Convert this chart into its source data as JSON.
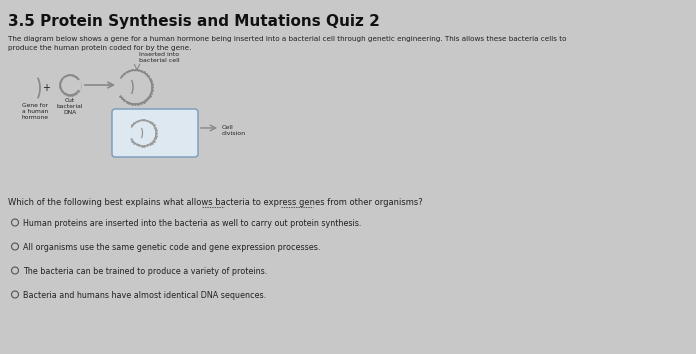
{
  "title": "3.5 Protein Synthesis and Mutations Quiz 2",
  "description_line1": "The diagram below shows a gene for a human hormone being inserted into a bacterial cell through genetic engineering. This allows these bacteria cells to",
  "description_line2": "produce the human protein coded for by the gene.",
  "question": "Which of the following best explains what allows bacteria to express genes from other organisms?",
  "options": [
    "Human proteins are inserted into the bacteria as well to carry out protein synthesis.",
    "All organisms use the same genetic code and gene expression processes.",
    "The bacteria can be trained to produce a variety of proteins.",
    "Bacteria and humans have almost identical DNA sequences."
  ],
  "diagram_labels": {
    "gene_label": "Gene for\na human\nhormone",
    "cut_label": "Cut\nbacterial\nDNA",
    "inserted_label": "Inserted into\nbacterial cell",
    "cell_division_label": "Cell\ndivision"
  },
  "bg_color": "#c8c8c8",
  "text_color": "#222222",
  "title_color": "#111111",
  "diagram_color": "#888888",
  "box_edge_color": "#7799bb",
  "box_face_color": "#dde8f0"
}
